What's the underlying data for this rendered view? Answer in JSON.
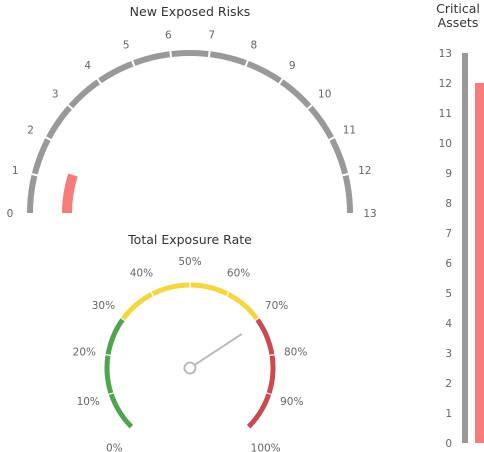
{
  "chart_data": [
    {
      "type": "gauge",
      "title": "New Exposed Risks",
      "min": 0,
      "max": 13,
      "value": 1.3,
      "tick_labels": [
        "0",
        "1",
        "2",
        "3",
        "4",
        "5",
        "6",
        "7",
        "8",
        "9",
        "10",
        "11",
        "12",
        "13"
      ],
      "colors": {
        "track": "#999999",
        "value": "#F77B7B"
      }
    },
    {
      "type": "gauge",
      "title": "Total Exposure Rate",
      "min": 0,
      "max": 100,
      "value": 71,
      "unit": "%",
      "tick_labels": [
        "0%",
        "10%",
        "20%",
        "30%",
        "40%",
        "50%",
        "60%",
        "70%",
        "80%",
        "90%",
        "100%"
      ],
      "bands": [
        {
          "from": 0,
          "to": 30,
          "color": "#4CA64C"
        },
        {
          "from": 30,
          "to": 70,
          "color": "#F5D63B"
        },
        {
          "from": 70,
          "to": 100,
          "color": "#CC4A4F"
        }
      ],
      "colors": {
        "needle": "#BBBBBB"
      }
    },
    {
      "type": "bar",
      "title": "Critical Assets",
      "title_lines": [
        "Critical",
        "Assets"
      ],
      "min": 0,
      "max": 13,
      "value": 12,
      "tick_labels": [
        "0",
        "1",
        "2",
        "3",
        "4",
        "5",
        "6",
        "7",
        "8",
        "9",
        "10",
        "11",
        "12",
        "13"
      ],
      "colors": {
        "axis": "#999999",
        "bar": "#F77B7B"
      }
    }
  ]
}
